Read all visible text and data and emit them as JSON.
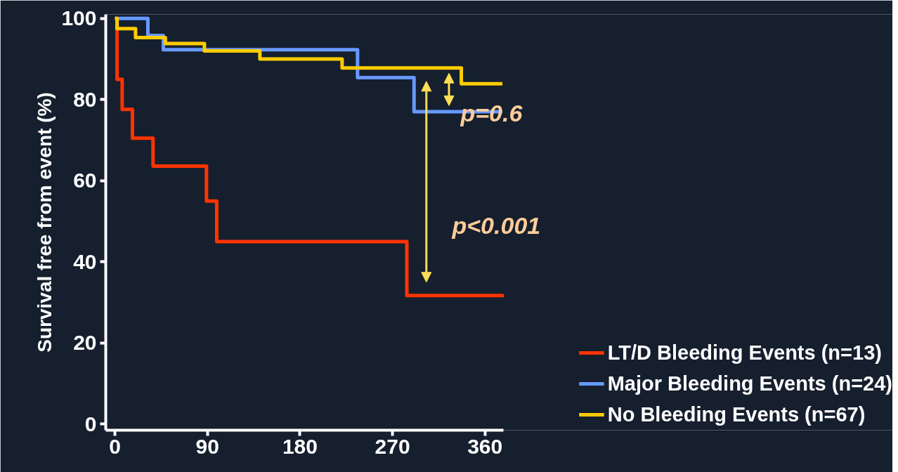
{
  "chart_data": {
    "type": "step",
    "ylabel": "Survival free from event (%)",
    "xlim": [
      -9,
      378
    ],
    "ylim": [
      -1.5,
      101
    ],
    "xticks": [
      0,
      90,
      180,
      270,
      360
    ],
    "yticks": [
      0,
      20,
      40,
      60,
      80,
      100
    ],
    "grid": false,
    "legend": "bottom right",
    "line_style": "solid",
    "marker": "none",
    "series": [
      {
        "name": "LT/D Bleeding Events (n=13)",
        "color": "#ff3300",
        "x": [
          0,
          2,
          7,
          17,
          37,
          89,
          99,
          284,
          377
        ],
        "values": [
          100,
          85,
          77.6,
          70.5,
          63.6,
          55,
          45,
          31.7,
          31.3
        ]
      },
      {
        "name": "Major Bleeding Events (n=24)",
        "color": "#6699ff",
        "x": [
          0,
          32,
          47,
          236,
          291,
          377
        ],
        "values": [
          100,
          95.8,
          92.3,
          85.4,
          77,
          77
        ]
      },
      {
        "name": "No Bleeding Events (n=67)",
        "color": "#ffcc00",
        "x": [
          0,
          2,
          20,
          49,
          87,
          141,
          221,
          337,
          377
        ],
        "values": [
          100,
          97.5,
          95.3,
          93.8,
          92,
          90,
          87.8,
          83.9,
          83.9
        ]
      }
    ],
    "annotations": [
      "p=0.6",
      "p<0.001"
    ]
  }
}
